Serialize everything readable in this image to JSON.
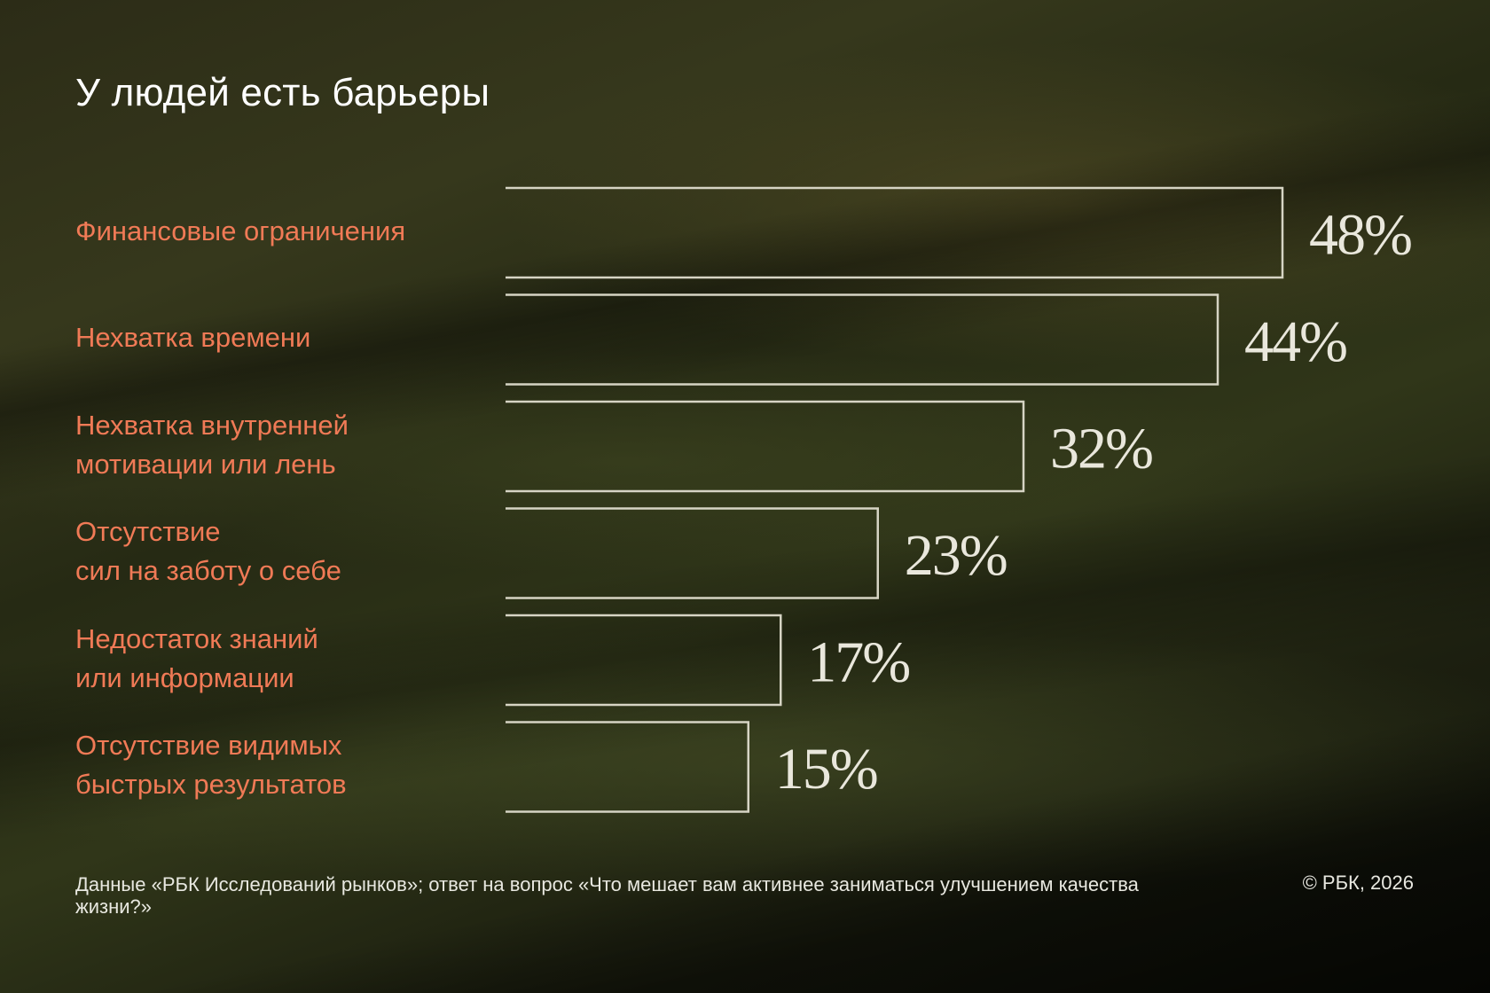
{
  "colors": {
    "label": "#f07a56",
    "bar_outline": "#d6d4c4",
    "value_text": "#e9e7dc",
    "title": "#ffffff"
  },
  "chart_data": {
    "type": "bar",
    "orientation": "horizontal",
    "title": "У людей есть барьеры",
    "categories": [
      "Финансовые ограничения",
      "Нехватка времени",
      "Нехватка внутренней\nмотивации или лень",
      "Отсутствие\nсил на заботу о себе",
      "Недостаток знаний\nили информации",
      "Отсутствие видимых\nбыстрых результатов"
    ],
    "values": [
      48,
      44,
      32,
      23,
      17,
      15
    ],
    "value_labels": [
      "48%",
      "44%",
      "32%",
      "23%",
      "17%",
      "15%"
    ],
    "unit": "%",
    "xlim": [
      0,
      48
    ],
    "grid": false,
    "legend": "none"
  },
  "footnote": "Данные «РБК Исследований рынков»; ответ на вопрос «Что мешает вам активнее заниматься улучшением качества жизни?»",
  "copyright": "© РБК, 2026"
}
